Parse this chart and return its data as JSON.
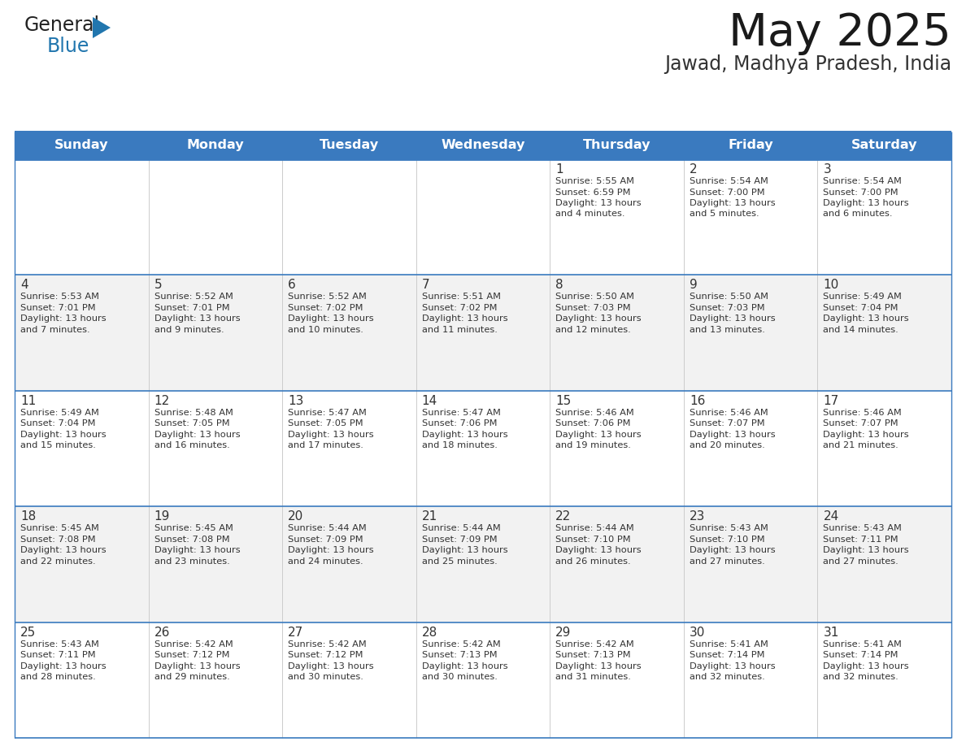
{
  "title": "May 2025",
  "subtitle": "Jawad, Madhya Pradesh, India",
  "days_of_week": [
    "Sunday",
    "Monday",
    "Tuesday",
    "Wednesday",
    "Thursday",
    "Friday",
    "Saturday"
  ],
  "header_bg": "#3a7abf",
  "header_text": "#ffffff",
  "row_bg_light": "#f2f2f2",
  "row_bg_white": "#ffffff",
  "cell_border_color": "#3a7abf",
  "text_color": "#333333",
  "logo_black": "#222222",
  "logo_blue": "#2176ae",
  "calendar_data": [
    [
      null,
      null,
      null,
      null,
      {
        "day": 1,
        "sunrise": "5:55 AM",
        "sunset": "6:59 PM",
        "daylight_min": "4"
      },
      {
        "day": 2,
        "sunrise": "5:54 AM",
        "sunset": "7:00 PM",
        "daylight_min": "5"
      },
      {
        "day": 3,
        "sunrise": "5:54 AM",
        "sunset": "7:00 PM",
        "daylight_min": "6"
      }
    ],
    [
      {
        "day": 4,
        "sunrise": "5:53 AM",
        "sunset": "7:01 PM",
        "daylight_min": "7"
      },
      {
        "day": 5,
        "sunrise": "5:52 AM",
        "sunset": "7:01 PM",
        "daylight_min": "9"
      },
      {
        "day": 6,
        "sunrise": "5:52 AM",
        "sunset": "7:02 PM",
        "daylight_min": "10"
      },
      {
        "day": 7,
        "sunrise": "5:51 AM",
        "sunset": "7:02 PM",
        "daylight_min": "11"
      },
      {
        "day": 8,
        "sunrise": "5:50 AM",
        "sunset": "7:03 PM",
        "daylight_min": "12"
      },
      {
        "day": 9,
        "sunrise": "5:50 AM",
        "sunset": "7:03 PM",
        "daylight_min": "13"
      },
      {
        "day": 10,
        "sunrise": "5:49 AM",
        "sunset": "7:04 PM",
        "daylight_min": "14"
      }
    ],
    [
      {
        "day": 11,
        "sunrise": "5:49 AM",
        "sunset": "7:04 PM",
        "daylight_min": "15"
      },
      {
        "day": 12,
        "sunrise": "5:48 AM",
        "sunset": "7:05 PM",
        "daylight_min": "16"
      },
      {
        "day": 13,
        "sunrise": "5:47 AM",
        "sunset": "7:05 PM",
        "daylight_min": "17"
      },
      {
        "day": 14,
        "sunrise": "5:47 AM",
        "sunset": "7:06 PM",
        "daylight_min": "18"
      },
      {
        "day": 15,
        "sunrise": "5:46 AM",
        "sunset": "7:06 PM",
        "daylight_min": "19"
      },
      {
        "day": 16,
        "sunrise": "5:46 AM",
        "sunset": "7:07 PM",
        "daylight_min": "20"
      },
      {
        "day": 17,
        "sunrise": "5:46 AM",
        "sunset": "7:07 PM",
        "daylight_min": "21"
      }
    ],
    [
      {
        "day": 18,
        "sunrise": "5:45 AM",
        "sunset": "7:08 PM",
        "daylight_min": "22"
      },
      {
        "day": 19,
        "sunrise": "5:45 AM",
        "sunset": "7:08 PM",
        "daylight_min": "23"
      },
      {
        "day": 20,
        "sunrise": "5:44 AM",
        "sunset": "7:09 PM",
        "daylight_min": "24"
      },
      {
        "day": 21,
        "sunrise": "5:44 AM",
        "sunset": "7:09 PM",
        "daylight_min": "25"
      },
      {
        "day": 22,
        "sunrise": "5:44 AM",
        "sunset": "7:10 PM",
        "daylight_min": "26"
      },
      {
        "day": 23,
        "sunrise": "5:43 AM",
        "sunset": "7:10 PM",
        "daylight_min": "27"
      },
      {
        "day": 24,
        "sunrise": "5:43 AM",
        "sunset": "7:11 PM",
        "daylight_min": "27"
      }
    ],
    [
      {
        "day": 25,
        "sunrise": "5:43 AM",
        "sunset": "7:11 PM",
        "daylight_min": "28"
      },
      {
        "day": 26,
        "sunrise": "5:42 AM",
        "sunset": "7:12 PM",
        "daylight_min": "29"
      },
      {
        "day": 27,
        "sunrise": "5:42 AM",
        "sunset": "7:12 PM",
        "daylight_min": "30"
      },
      {
        "day": 28,
        "sunrise": "5:42 AM",
        "sunset": "7:13 PM",
        "daylight_min": "30"
      },
      {
        "day": 29,
        "sunrise": "5:42 AM",
        "sunset": "7:13 PM",
        "daylight_min": "31"
      },
      {
        "day": 30,
        "sunrise": "5:41 AM",
        "sunset": "7:14 PM",
        "daylight_min": "32"
      },
      {
        "day": 31,
        "sunrise": "5:41 AM",
        "sunset": "7:14 PM",
        "daylight_min": "32"
      }
    ]
  ]
}
